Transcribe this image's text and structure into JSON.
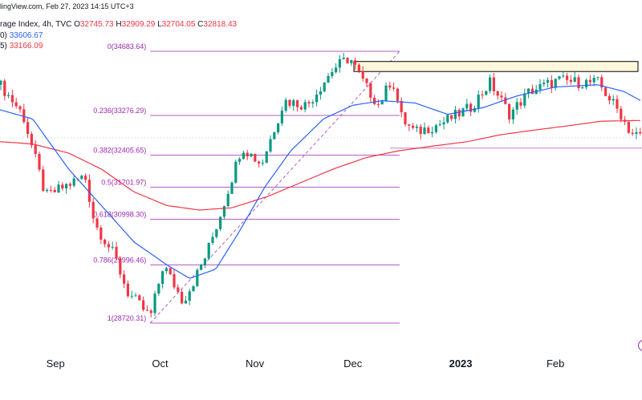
{
  "header": {
    "source_line": "lingView.com, Feb 27, 2023 14:15 UTC+3",
    "title": "rage Index, 4h, TVC",
    "ohlc": {
      "o_label": "O",
      "o": "32745.73",
      "h_label": "H",
      "h": "32909.29",
      "l_label": "L",
      "l": "32704.05",
      "c_label": "C",
      "c": "32818.43"
    },
    "ma1": {
      "prefix": "0)",
      "value": "33606.67",
      "color": "#2962ff"
    },
    "ma2": {
      "prefix": "5)",
      "value": "33166.09",
      "color": "#f23645"
    }
  },
  "colors": {
    "up": "#089981",
    "down": "#f23645",
    "fib": "#9c27b0",
    "ma_fast": "#2962ff",
    "ma_slow": "#f23645",
    "zone_fill": "#fff8dc"
  },
  "chart_data": {
    "type": "candlestick",
    "title": "",
    "x_axis_labels": [
      "Sep",
      "Oct",
      "Nov",
      "Dec",
      "2023",
      "Feb"
    ],
    "ylim": [
      28450,
      35200
    ],
    "fib_levels": [
      {
        "label": "0(34683.64)",
        "ratio": 0,
        "price": 34683.64
      },
      {
        "label": "0.236(33276.29)",
        "ratio": 0.236,
        "price": 33276.29
      },
      {
        "label": "0.382(32405.65)",
        "ratio": 0.382,
        "price": 32405.65
      },
      {
        "label": "0.5(31701.97)",
        "ratio": 0.5,
        "price": 31701.97
      },
      {
        "label": "0.618(30998.30)",
        "ratio": 0.618,
        "price": 30998.3
      },
      {
        "label": "0.786(29996.46)",
        "ratio": 0.786,
        "price": 29996.46
      },
      {
        "label": "1(28720.31)",
        "ratio": 1,
        "price": 28720.31
      }
    ],
    "resistance_zone": {
      "top": 34460,
      "bottom": 34240
    },
    "support_price": 32560,
    "anchors": [
      {
        "date": "2022-08-15",
        "close": 33950
      },
      {
        "date": "2022-08-22",
        "close": 33300
      },
      {
        "date": "2022-08-29",
        "close": 31500
      },
      {
        "date": "2022-09-06",
        "close": 31800
      },
      {
        "date": "2022-09-10",
        "close": 31950
      },
      {
        "date": "2022-09-13",
        "close": 30900
      },
      {
        "date": "2022-09-19",
        "close": 30200
      },
      {
        "date": "2022-09-23",
        "close": 29400
      },
      {
        "date": "2022-09-30",
        "close": 28850
      },
      {
        "date": "2022-10-04",
        "close": 30000
      },
      {
        "date": "2022-10-10",
        "close": 29200
      },
      {
        "date": "2022-10-13",
        "close": 29600
      },
      {
        "date": "2022-10-17",
        "close": 30200
      },
      {
        "date": "2022-10-21",
        "close": 31000
      },
      {
        "date": "2022-10-28",
        "close": 32600
      },
      {
        "date": "2022-11-03",
        "close": 32200
      },
      {
        "date": "2022-11-10",
        "close": 33600
      },
      {
        "date": "2022-11-17",
        "close": 33500
      },
      {
        "date": "2022-11-25",
        "close": 34300
      },
      {
        "date": "2022-11-30",
        "close": 34550
      },
      {
        "date": "2022-12-05",
        "close": 33900
      },
      {
        "date": "2022-12-09",
        "close": 33500
      },
      {
        "date": "2022-12-13",
        "close": 34100
      },
      {
        "date": "2022-12-16",
        "close": 33200
      },
      {
        "date": "2022-12-20",
        "close": 32900
      },
      {
        "date": "2022-12-28",
        "close": 33100
      },
      {
        "date": "2023-01-06",
        "close": 33450
      },
      {
        "date": "2023-01-12",
        "close": 34000
      },
      {
        "date": "2023-01-18",
        "close": 33300
      },
      {
        "date": "2023-01-24",
        "close": 33800
      },
      {
        "date": "2023-02-02",
        "close": 34050
      },
      {
        "date": "2023-02-08",
        "close": 34000
      },
      {
        "date": "2023-02-14",
        "close": 34000
      },
      {
        "date": "2023-02-21",
        "close": 33300
      },
      {
        "date": "2023-02-24",
        "close": 32900
      },
      {
        "date": "2023-02-27",
        "close": 32818
      }
    ],
    "ma_fast_anchors": [
      {
        "date": "2022-08-15",
        "value": 33400
      },
      {
        "date": "2022-08-25",
        "value": 33200
      },
      {
        "date": "2022-09-05",
        "value": 32100
      },
      {
        "date": "2022-09-15",
        "value": 31300
      },
      {
        "date": "2022-09-25",
        "value": 30500
      },
      {
        "date": "2022-10-05",
        "value": 30000
      },
      {
        "date": "2022-10-12",
        "value": 29700
      },
      {
        "date": "2022-10-20",
        "value": 29900
      },
      {
        "date": "2022-10-27",
        "value": 30700
      },
      {
        "date": "2022-11-04",
        "value": 31700
      },
      {
        "date": "2022-11-12",
        "value": 32500
      },
      {
        "date": "2022-11-22",
        "value": 33200
      },
      {
        "date": "2022-12-01",
        "value": 33500
      },
      {
        "date": "2022-12-10",
        "value": 33600
      },
      {
        "date": "2022-12-20",
        "value": 33550
      },
      {
        "date": "2022-12-30",
        "value": 33300
      },
      {
        "date": "2023-01-10",
        "value": 33450
      },
      {
        "date": "2023-01-20",
        "value": 33700
      },
      {
        "date": "2023-02-01",
        "value": 33900
      },
      {
        "date": "2023-02-14",
        "value": 33950
      },
      {
        "date": "2023-02-22",
        "value": 33800
      },
      {
        "date": "2023-02-27",
        "value": 33606
      }
    ],
    "ma_slow_anchors": [
      {
        "date": "2022-08-15",
        "value": 32700
      },
      {
        "date": "2022-08-25",
        "value": 32650
      },
      {
        "date": "2022-09-05",
        "value": 32450
      },
      {
        "date": "2022-09-15",
        "value": 32100
      },
      {
        "date": "2022-09-25",
        "value": 31600
      },
      {
        "date": "2022-10-05",
        "value": 31300
      },
      {
        "date": "2022-10-15",
        "value": 31200
      },
      {
        "date": "2022-10-25",
        "value": 31250
      },
      {
        "date": "2022-11-05",
        "value": 31500
      },
      {
        "date": "2022-11-15",
        "value": 31800
      },
      {
        "date": "2022-11-25",
        "value": 32100
      },
      {
        "date": "2022-12-05",
        "value": 32350
      },
      {
        "date": "2022-12-15",
        "value": 32500
      },
      {
        "date": "2022-12-25",
        "value": 32600
      },
      {
        "date": "2023-01-05",
        "value": 32700
      },
      {
        "date": "2023-01-15",
        "value": 32850
      },
      {
        "date": "2023-01-25",
        "value": 32950
      },
      {
        "date": "2023-02-05",
        "value": 33050
      },
      {
        "date": "2023-02-15",
        "value": 33150
      },
      {
        "date": "2023-02-27",
        "value": 33166
      }
    ],
    "fib_dates": {
      "start": "2022-09-30",
      "end": "2022-11-30"
    },
    "x_tick_dates": [
      "2022-09-01",
      "2022-10-03",
      "2022-11-01",
      "2022-12-01",
      "2023-01-03",
      "2023-02-01"
    ]
  }
}
